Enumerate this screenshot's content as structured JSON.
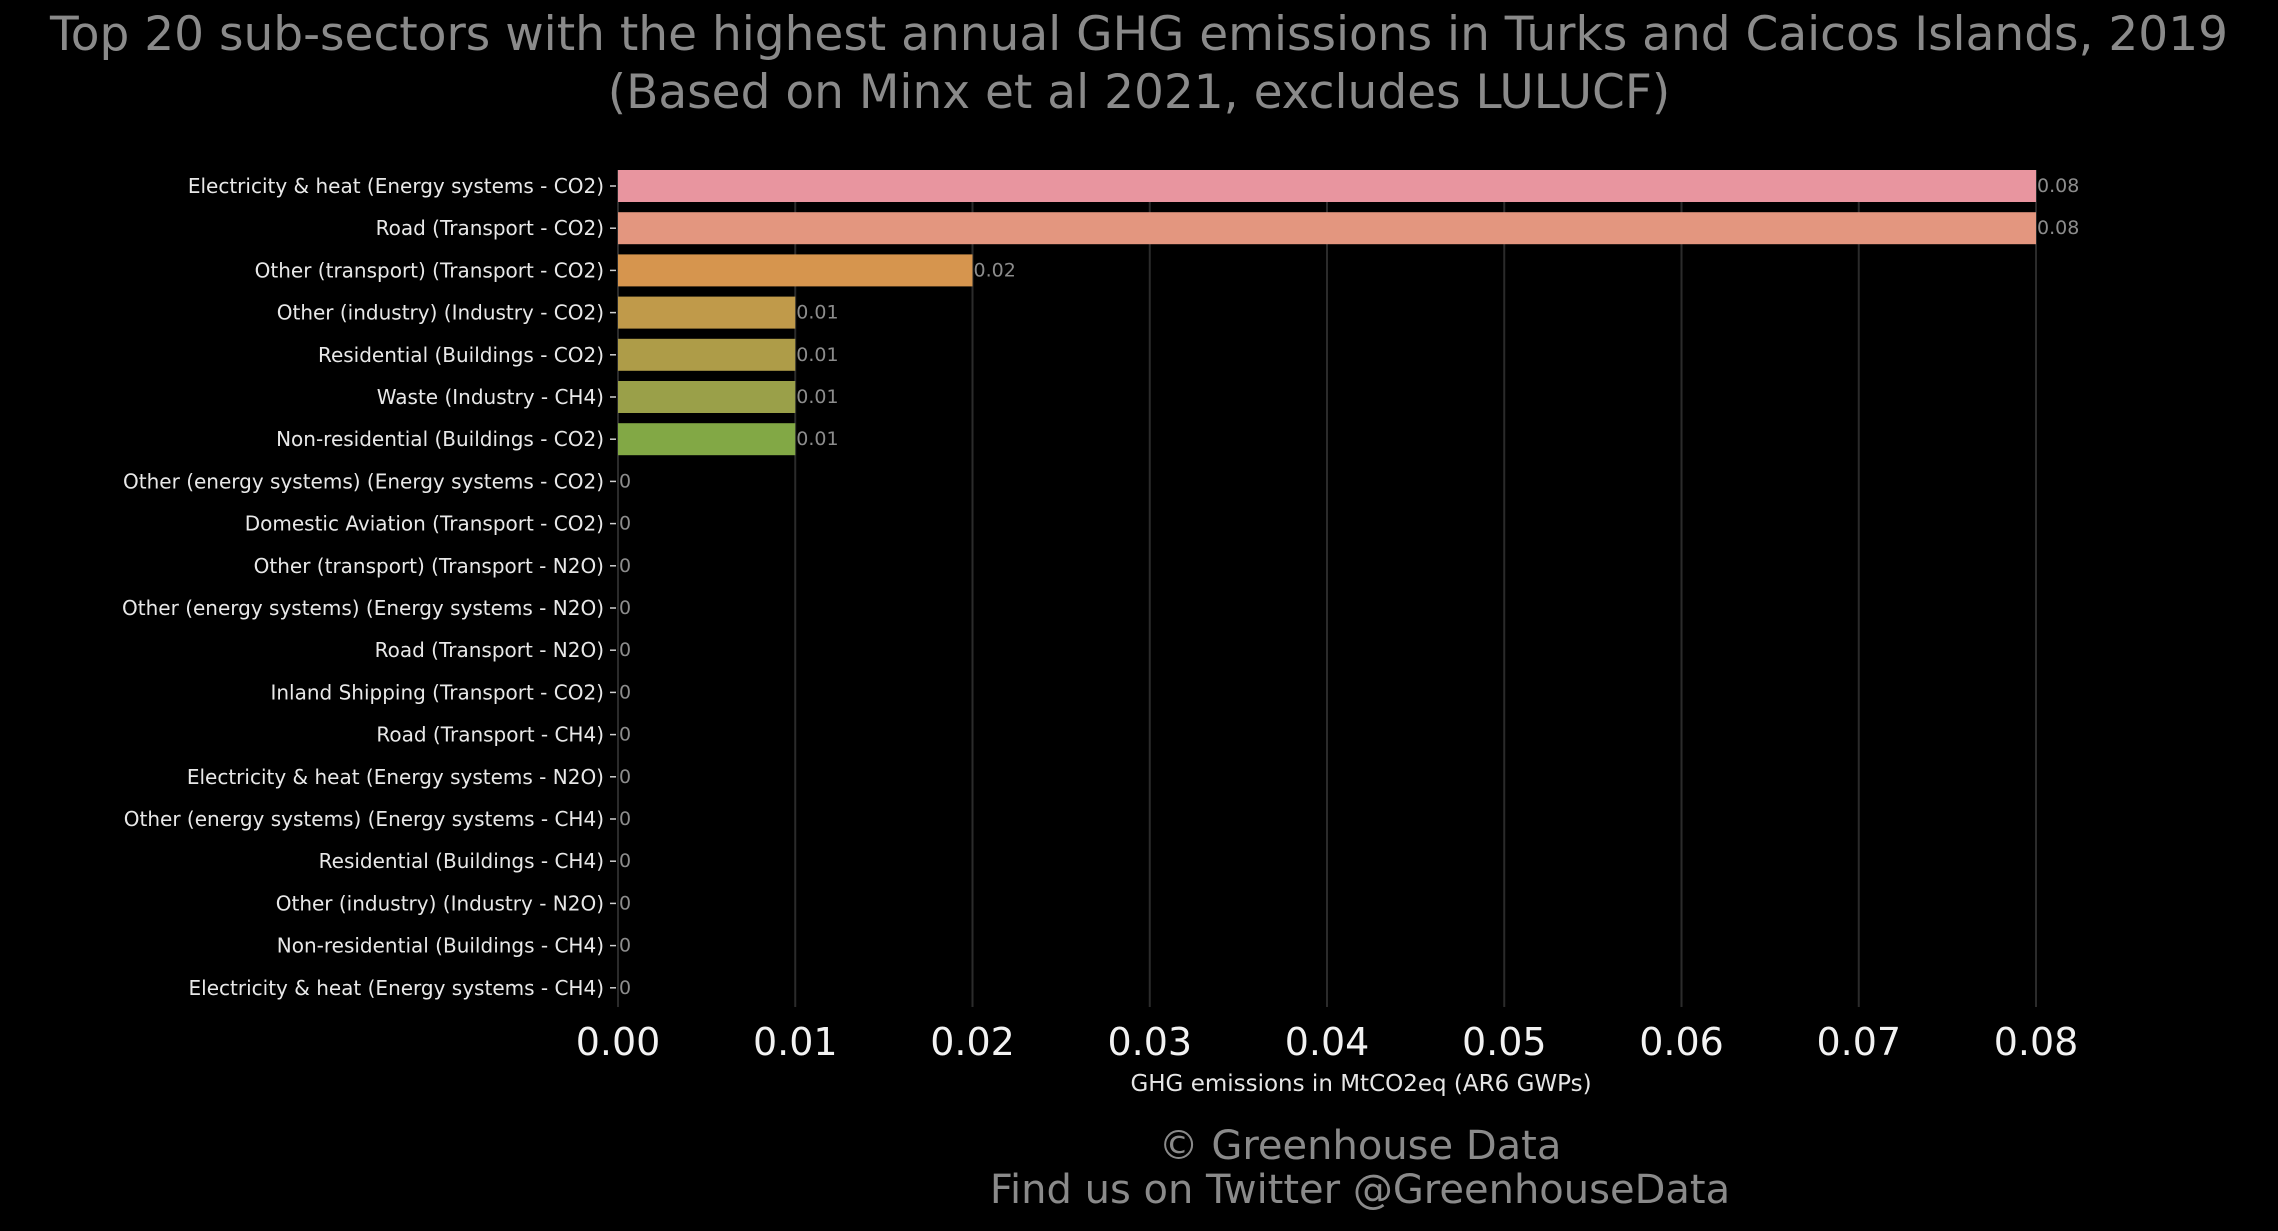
{
  "chart_data": {
    "type": "bar",
    "orientation": "horizontal",
    "title": "Top 20 sub-sectors with the highest annual GHG emissions in Turks and Caicos Islands, 2019",
    "subtitle": "(Based on Minx et al 2021, excludes LULUCF)",
    "xlabel": "GHG emissions in MtCO2eq (AR6 GWPs)",
    "ylabel": "",
    "xlim": [
      0,
      0.08
    ],
    "xticks": [
      "0.00",
      "0.01",
      "0.02",
      "0.03",
      "0.04",
      "0.05",
      "0.06",
      "0.07",
      "0.08"
    ],
    "grid": "vertical",
    "categories": [
      "Electricity & heat (Energy systems - CO2)",
      "Road (Transport - CO2)",
      "Other (transport) (Transport - CO2)",
      "Other (industry) (Industry - CO2)",
      "Residential (Buildings - CO2)",
      "Waste (Industry - CH4)",
      "Non-residential (Buildings - CO2)",
      "Other (energy systems) (Energy systems - CO2)",
      "Domestic Aviation (Transport - CO2)",
      "Other (transport) (Transport - N2O)",
      "Other (energy systems) (Energy systems - N2O)",
      "Road (Transport - N2O)",
      "Inland Shipping (Transport - CO2)",
      "Road (Transport - CH4)",
      "Electricity & heat (Energy systems - N2O)",
      "Other (energy systems) (Energy systems - CH4)",
      "Residential (Buildings - CH4)",
      "Other (industry) (Industry - N2O)",
      "Non-residential (Buildings - CH4)",
      "Electricity & heat (Energy systems - CH4)"
    ],
    "values": [
      0.08,
      0.08,
      0.02,
      0.01,
      0.01,
      0.01,
      0.01,
      0,
      0,
      0,
      0,
      0,
      0,
      0,
      0,
      0,
      0,
      0,
      0,
      0
    ],
    "data_labels": [
      "0.08",
      "0.08",
      "0.02",
      "0.01",
      "0.01",
      "0.01",
      "0.01",
      "0",
      "0",
      "0",
      "0",
      "0",
      "0",
      "0",
      "0",
      "0",
      "0",
      "0",
      "0",
      "0"
    ],
    "bar_colors": [
      "#e8959f",
      "#e3967f",
      "#d6954e",
      "#c09a4a",
      "#ae9c48",
      "#9aa049",
      "#82a845"
    ]
  },
  "footer": {
    "line1": "© Greenhouse Data",
    "line2": "Find us on Twitter @GreenhouseData"
  }
}
